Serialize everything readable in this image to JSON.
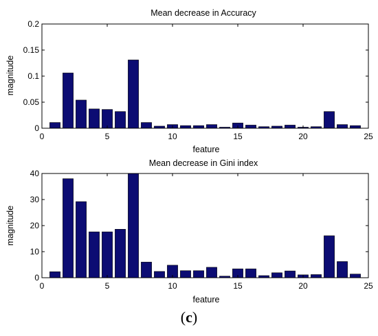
{
  "caption": {
    "prefix": "(",
    "letter": "c",
    "suffix": ")"
  },
  "bar_color": "#0c0c73",
  "chart_data": [
    {
      "type": "bar",
      "title": "Mean decrease in Accuracy",
      "xlabel": "feature",
      "ylabel": "magnitude",
      "xlim": [
        0,
        25
      ],
      "ylim": [
        0,
        0.2
      ],
      "xticks": [
        0,
        5,
        10,
        15,
        20,
        25
      ],
      "yticks": [
        0,
        0.05,
        0.1,
        0.15,
        0.2
      ],
      "ytick_labels": [
        "0",
        "0.05",
        "0.1",
        "0.15",
        "0.2"
      ],
      "categories": [
        1,
        2,
        3,
        4,
        5,
        6,
        7,
        8,
        9,
        10,
        11,
        12,
        13,
        14,
        15,
        16,
        17,
        18,
        19,
        20,
        21,
        22,
        23,
        24
      ],
      "values": [
        0.011,
        0.106,
        0.054,
        0.037,
        0.036,
        0.032,
        0.131,
        0.011,
        0.004,
        0.007,
        0.005,
        0.005,
        0.007,
        0.002,
        0.01,
        0.006,
        0.003,
        0.004,
        0.006,
        0.002,
        0.003,
        0.032,
        0.007,
        0.005
      ]
    },
    {
      "type": "bar",
      "title": "Mean decrease in Gini index",
      "xlabel": "feature",
      "ylabel": "magnitude",
      "xlim": [
        0,
        25
      ],
      "ylim": [
        0,
        40
      ],
      "xticks": [
        0,
        5,
        10,
        15,
        20,
        25
      ],
      "yticks": [
        0,
        10,
        20,
        30,
        40
      ],
      "ytick_labels": [
        "0",
        "10",
        "20",
        "30",
        "40"
      ],
      "categories": [
        1,
        2,
        3,
        4,
        5,
        6,
        7,
        8,
        9,
        10,
        11,
        12,
        13,
        14,
        15,
        16,
        17,
        18,
        19,
        20,
        21,
        22,
        23,
        24
      ],
      "values": [
        2.3,
        38.0,
        29.2,
        17.6,
        17.6,
        18.6,
        40.0,
        6.0,
        2.4,
        4.8,
        2.7,
        2.7,
        4.0,
        0.6,
        3.4,
        3.4,
        0.8,
        1.9,
        2.6,
        1.1,
        1.2,
        16.1,
        6.2,
        1.4
      ]
    }
  ]
}
